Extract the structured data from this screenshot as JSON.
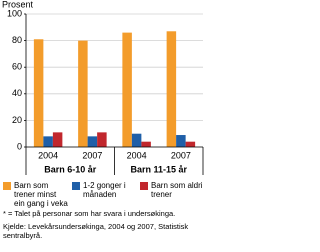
{
  "chart_data": {
    "type": "bar",
    "y_label": "Prosent",
    "categories": [
      "2004",
      "2007",
      "2004",
      "2007"
    ],
    "groups": [
      "Barn 6-10 år",
      "Barn 11-15 år"
    ],
    "series": [
      {
        "name": "Barn som trener minst ein gang i veka",
        "color": "#f39c2b",
        "values": [
          81,
          80,
          86,
          87
        ]
      },
      {
        "name": "1-2 gonger i månaden",
        "color": "#1f5fa8",
        "values": [
          8,
          8,
          10,
          9
        ]
      },
      {
        "name": "Barn som aldri trener",
        "color": "#c1272d",
        "values": [
          11,
          11,
          4,
          4
        ]
      }
    ],
    "ylim": [
      0,
      100
    ],
    "yticks": [
      0,
      20,
      40,
      60,
      80,
      100
    ],
    "grid": true,
    "footnote": "* = Talet på personar som har svara i undersøkinga.",
    "source": "Kjelde: Levekårsundersøkinga, 2004 og 2007, Statistisk sentralbyrå."
  }
}
